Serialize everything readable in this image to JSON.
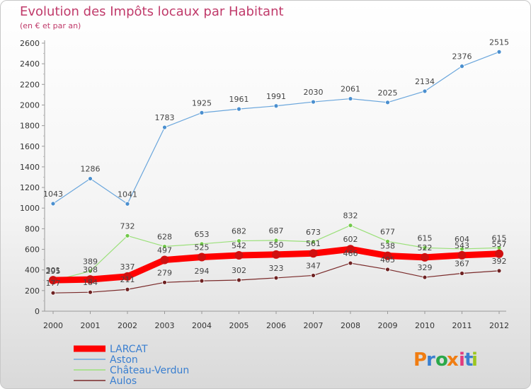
{
  "chart_data": {
    "type": "line",
    "title": "Evolution des Impôts locaux par Habitant",
    "subtitle": "(en € et par an)",
    "x": [
      "2000",
      "2001",
      "2002",
      "2003",
      "2004",
      "2005",
      "2006",
      "2007",
      "2008",
      "2009",
      "2010",
      "2011",
      "2012"
    ],
    "ylim": [
      0,
      2600
    ],
    "yticks": [
      0,
      200,
      400,
      600,
      800,
      1000,
      1200,
      1400,
      1600,
      1800,
      2000,
      2200,
      2400,
      2600
    ],
    "grid": false,
    "legend_position": "bottom-left",
    "series": [
      {
        "name": "LARCAT",
        "color": "#ff0000",
        "marker": "#d01010",
        "width": 9,
        "values": [
          301,
          308,
          337,
          497,
          525,
          542,
          550,
          561,
          602,
          538,
          522,
          543,
          557
        ]
      },
      {
        "name": "Aston",
        "color": "#6aa6dc",
        "marker": "#4a8fcf",
        "width": 1.2,
        "values": [
          1043,
          1286,
          1041,
          1783,
          1925,
          1961,
          1991,
          2030,
          2061,
          2025,
          2134,
          2376,
          2515
        ]
      },
      {
        "name": "Château-Verdun",
        "color": "#9be07a",
        "marker": "#72c84a",
        "width": 1.2,
        "values": [
          295,
          389,
          732,
          628,
          653,
          682,
          687,
          673,
          832,
          677,
          615,
          604,
          615
        ]
      },
      {
        "name": "Aulos",
        "color": "#7a2a2a",
        "marker": "#6e2222",
        "width": 1.2,
        "values": [
          177,
          184,
          211,
          279,
          294,
          302,
          323,
          347,
          466,
          405,
          329,
          367,
          392
        ]
      }
    ]
  },
  "logo": {
    "text": "Proxiti",
    "letter_colors": [
      "#f07d12",
      "#3a7fd0",
      "#2aa84a",
      "#f07d12",
      "#e23a7e",
      "#3a7fd0",
      "#9bc61f"
    ]
  }
}
